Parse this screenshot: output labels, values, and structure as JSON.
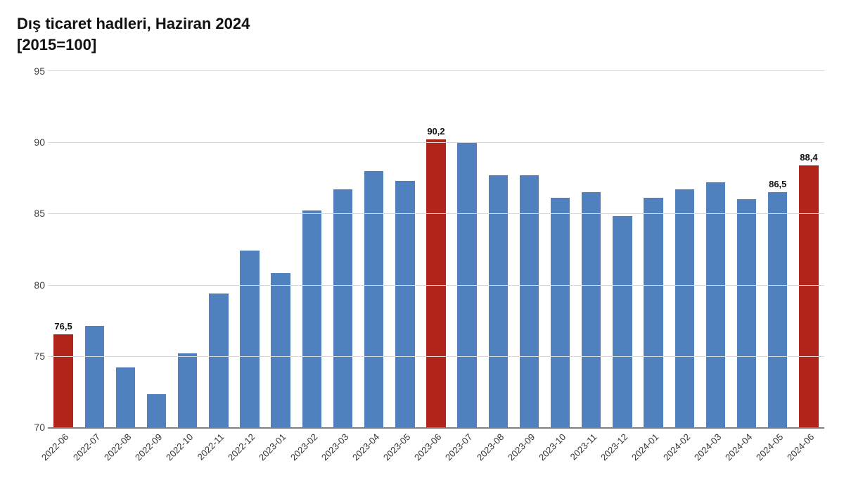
{
  "title_line1": "Dış ticaret hadleri, Haziran 2024",
  "title_line2": "[2015=100]",
  "chart": {
    "type": "bar",
    "ylim": [
      70,
      95
    ],
    "yticks": [
      70,
      75,
      80,
      85,
      90,
      95
    ],
    "bar_width_ratio": 0.62,
    "grid_color": "#d9d9d9",
    "axis_color": "#808080",
    "background_color": "#ffffff",
    "label_fontsize": 14,
    "xlabel_fontsize": 13,
    "datalabel_fontsize": 13,
    "colors": {
      "normal": "#4e81bd",
      "highlight": "#b02419"
    },
    "categories": [
      "2022-06",
      "2022-07",
      "2022-08",
      "2022-09",
      "2022-10",
      "2022-11",
      "2022-12",
      "2023-01",
      "2023-02",
      "2023-03",
      "2023-04",
      "2023-05",
      "2023-06",
      "2023-07",
      "2023-08",
      "2023-09",
      "2023-10",
      "2023-11",
      "2023-12",
      "2024-01",
      "2024-02",
      "2024-03",
      "2024-04",
      "2024-05",
      "2024-06"
    ],
    "values": [
      76.5,
      77.1,
      74.2,
      72.3,
      75.2,
      79.4,
      82.4,
      80.8,
      85.2,
      86.7,
      88.0,
      87.3,
      90.2,
      90.0,
      87.7,
      87.7,
      86.1,
      86.5,
      84.8,
      86.1,
      86.7,
      87.2,
      86.0,
      86.5,
      88.4
    ],
    "highlight_idx": [
      0,
      12,
      24
    ],
    "data_labels": [
      {
        "idx": 0,
        "text": "76,5"
      },
      {
        "idx": 12,
        "text": "90,2"
      },
      {
        "idx": 23,
        "text": "86,5"
      },
      {
        "idx": 24,
        "text": "88,4"
      }
    ]
  }
}
